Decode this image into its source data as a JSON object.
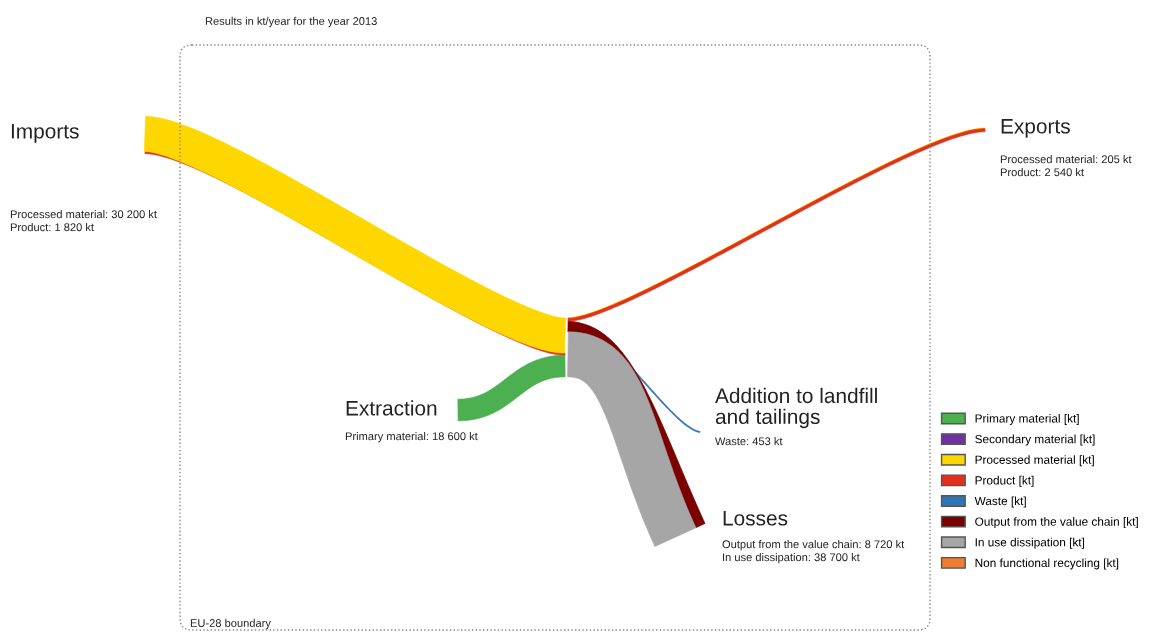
{
  "chart_data": {
    "type": "other",
    "title": "Results in kt/year for the year 2013",
    "categories": [
      "Imports",
      "Extraction",
      "Exports",
      "Addition to landfill\nand tailings",
      "Losses"
    ],
    "series": [
      {
        "name": "Primary material [kt]",
        "color": "#4caf50",
        "values": [
          null,
          18600,
          null,
          null,
          null
        ],
        "value_labels": [
          null,
          "Primary material: 18 600 kt",
          null,
          null,
          null
        ]
      },
      {
        "name": "Secondary material [kt]",
        "color": "#7030a0",
        "values": [
          null,
          null,
          null,
          null,
          null
        ]
      },
      {
        "name": "Processed material [kt]",
        "color": "#ffd700",
        "values": [
          30200,
          null,
          205,
          null,
          null
        ],
        "value_labels": [
          "Processed material: 30 200 kt",
          null,
          "Processed material: 205 kt",
          null,
          null
        ]
      },
      {
        "name": "Product [kt]",
        "color": "#e0301e",
        "values": [
          1820,
          null,
          2540,
          null,
          null
        ],
        "value_labels": [
          "Product: 1 820 kt",
          null,
          "Product: 2 540 kt",
          null,
          null
        ]
      },
      {
        "name": "Waste [kt]",
        "color": "#2e75b6",
        "values": [
          null,
          null,
          null,
          453,
          null
        ],
        "value_labels": [
          null,
          null,
          null,
          "Waste: 453 kt",
          null
        ]
      },
      {
        "name": "Output from the value chain [kt]",
        "color": "#7b0000",
        "values": [
          null,
          null,
          null,
          null,
          8720
        ],
        "value_labels": [
          null,
          null,
          null,
          null,
          "Output from the value chain: 8 720 kt"
        ]
      },
      {
        "name": "In use dissipation [kt]",
        "color": "#a6a6a6",
        "values": [
          null,
          null,
          null,
          null,
          38700
        ],
        "value_labels": [
          null,
          null,
          null,
          null,
          "In use dissipation: 38 700 kt"
        ]
      },
      {
        "name": "Non functional recycling [kt]",
        "color": "#ed7d31",
        "values": [
          null,
          null,
          null,
          null,
          null
        ]
      }
    ],
    "annotations": [
      "EU-28 boundary"
    ],
    "legend": "right"
  }
}
